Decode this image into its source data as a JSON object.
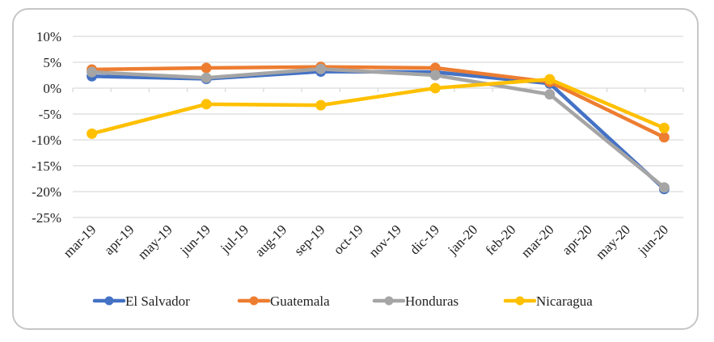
{
  "chart_data": {
    "type": "line",
    "title": "",
    "xlabel": "",
    "ylabel": "",
    "categories": [
      "mar-19",
      "apr-19",
      "may-19",
      "jun-19",
      "jul-19",
      "aug-19",
      "sep-19",
      "oct-19",
      "nov-19",
      "dic-19",
      "jan-20",
      "feb-20",
      "mar-20",
      "apr-20",
      "may-20",
      "jun-20"
    ],
    "y_ticks": [
      "10%",
      "5%",
      "0%",
      "-5%",
      "-10%",
      "-15%",
      "-20%",
      "-25%"
    ],
    "y_tick_values": [
      10,
      5,
      0,
      -5,
      -10,
      -15,
      -20,
      -25
    ],
    "ylim": [
      -25,
      10
    ],
    "grid": true,
    "legend_position": "bottom",
    "series": [
      {
        "name": "El Salvador",
        "color": "#4472c4",
        "points": [
          {
            "x": "mar-19",
            "y": 2.3
          },
          {
            "x": "jun-19",
            "y": 1.8
          },
          {
            "x": "sep-19",
            "y": 3.2
          },
          {
            "x": "dic-19",
            "y": 3.1
          },
          {
            "x": "mar-20",
            "y": 0.9
          },
          {
            "x": "jun-20",
            "y": -19.5
          }
        ]
      },
      {
        "name": "Guatemala",
        "color": "#ed7d31",
        "points": [
          {
            "x": "mar-19",
            "y": 3.6
          },
          {
            "x": "jun-19",
            "y": 3.9
          },
          {
            "x": "sep-19",
            "y": 4.1
          },
          {
            "x": "dic-19",
            "y": 3.9
          },
          {
            "x": "mar-20",
            "y": 1.2
          },
          {
            "x": "jun-20",
            "y": -9.5
          }
        ]
      },
      {
        "name": "Honduras",
        "color": "#a5a5a5",
        "points": [
          {
            "x": "mar-19",
            "y": 3.1
          },
          {
            "x": "jun-19",
            "y": 2.0
          },
          {
            "x": "sep-19",
            "y": 3.7
          },
          {
            "x": "dic-19",
            "y": 2.5
          },
          {
            "x": "mar-20",
            "y": -1.2
          },
          {
            "x": "jun-20",
            "y": -19.2
          }
        ]
      },
      {
        "name": "Nicaragua",
        "color": "#ffc000",
        "points": [
          {
            "x": "mar-19",
            "y": -8.8
          },
          {
            "x": "jun-19",
            "y": -3.1
          },
          {
            "x": "sep-19",
            "y": -3.3
          },
          {
            "x": "dic-19",
            "y": 0.0
          },
          {
            "x": "mar-20",
            "y": 1.7
          },
          {
            "x": "jun-20",
            "y": -7.7
          }
        ]
      }
    ]
  },
  "colors": {
    "grid": "#d9d9d9",
    "frame": "#c6c6c6"
  }
}
